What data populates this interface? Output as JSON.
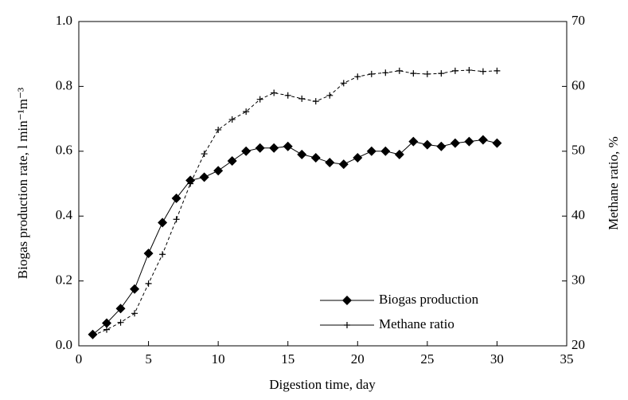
{
  "chart_data": {
    "type": "line",
    "x_label": "Digestion time, day",
    "y_label": "Biogas production rate, l min⁻¹m⁻³",
    "y2_label": "Methane ratio, %",
    "x": [
      1,
      2,
      3,
      4,
      5,
      6,
      7,
      8,
      9,
      10,
      11,
      12,
      13,
      14,
      15,
      16,
      17,
      18,
      19,
      20,
      21,
      22,
      23,
      24,
      25,
      26,
      27,
      28,
      29,
      30
    ],
    "series": [
      {
        "name": "Biogas production",
        "color": "#000000",
        "marker": "diamond",
        "values": [
          0.035,
          0.07,
          0.115,
          0.175,
          0.285,
          0.38,
          0.455,
          0.51,
          0.52,
          0.54,
          0.57,
          0.6,
          0.61,
          0.61,
          0.615,
          0.59,
          0.58,
          0.565,
          0.56,
          0.58,
          0.6,
          0.6,
          0.59,
          0.63,
          0.62,
          0.615,
          0.625,
          0.63,
          0.635,
          0.625
        ]
      },
      {
        "name": "Methane ratio",
        "color": "#000000",
        "marker": "plus",
        "axis": "y2",
        "values": [
          21.6,
          22.5,
          23.6,
          25,
          29.6,
          34.1,
          39.5,
          45,
          49.6,
          53.3,
          54.9,
          56.1,
          58,
          59,
          58.6,
          58.1,
          57.7,
          58.6,
          60.5,
          61.5,
          61.9,
          62.1,
          62.4,
          62,
          61.9,
          62,
          62.4,
          62.5,
          62.3,
          62.4
        ]
      }
    ],
    "xlim": [
      0,
      35
    ],
    "xticks": [
      0,
      5,
      10,
      15,
      20,
      25,
      30,
      35
    ],
    "ylim": [
      0,
      1
    ],
    "yticks": [
      {
        "value": 0,
        "label": "0.0"
      },
      0.2,
      0.4,
      0.6,
      0.8,
      {
        "value": 1,
        "label": "1.0"
      }
    ],
    "y2lim": [
      20,
      70
    ],
    "y2ticks": [
      20,
      30,
      40,
      50,
      60,
      70
    ],
    "legend": "lower right"
  }
}
